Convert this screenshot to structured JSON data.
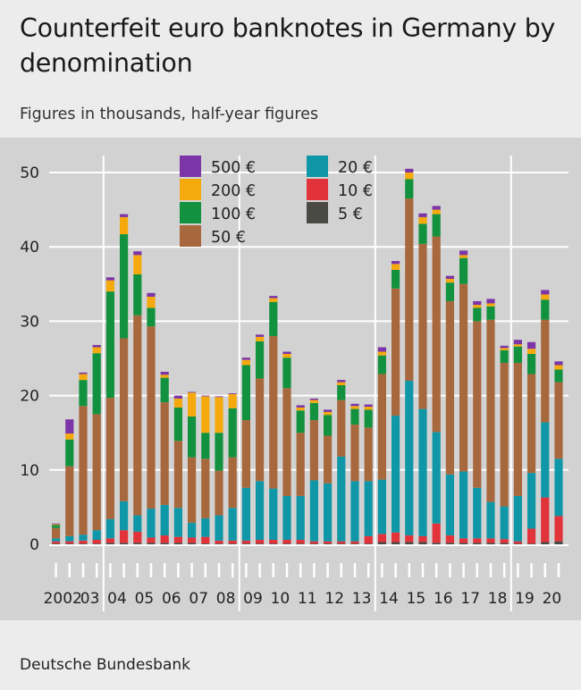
{
  "title": "Counterfeit euro banknotes in Germany by denomination",
  "subtitle": "Figures in thousands, half-year figures",
  "source": "Deutsche Bundesbank",
  "colors": {
    "5": "#4a4a45",
    "10": "#e2333a",
    "20": "#0f97a8",
    "50": "#a8683d",
    "100": "#12923f",
    "200": "#f5a90c",
    "500": "#7b35a6"
  },
  "chart_data": {
    "type": "bar",
    "stacked": true,
    "title": "Counterfeit euro banknotes in Germany by denomination",
    "subtitle": "Figures in thousands, half-year figures",
    "unit": "thousands",
    "ylim": [
      0,
      50
    ],
    "yticks": [
      0,
      10,
      20,
      30,
      40,
      50
    ],
    "grid": true,
    "legend_position": "top",
    "legend_entries": [
      "500 €",
      "200 €",
      "100 €",
      "50 €",
      "20 €",
      "10 €",
      "5 €"
    ],
    "year_labels": [
      "2002",
      "03",
      "04",
      "05",
      "06",
      "07",
      "08",
      "09",
      "10",
      "11",
      "12",
      "13",
      "14",
      "15",
      "16",
      "17",
      "18",
      "19",
      "20"
    ],
    "categories": [
      "2002 H1",
      "2002 H2",
      "2003 H1",
      "2003 H2",
      "2004 H1",
      "2004 H2",
      "2005 H1",
      "2005 H2",
      "2006 H1",
      "2006 H2",
      "2007 H1",
      "2007 H2",
      "2008 H1",
      "2008 H2",
      "2009 H1",
      "2009 H2",
      "2010 H1",
      "2010 H2",
      "2011 H1",
      "2011 H2",
      "2012 H1",
      "2012 H2",
      "2013 H1",
      "2013 H2",
      "2014 H1",
      "2014 H2",
      "2015 H1",
      "2015 H2",
      "2016 H1",
      "2016 H2",
      "2017 H1",
      "2017 H2",
      "2018 H1",
      "2018 H2",
      "2019 H1",
      "2019 H2",
      "2020 H1",
      "2020 H2"
    ],
    "series": [
      {
        "name": "5 €",
        "key": "5",
        "values": [
          0.1,
          0.1,
          0.1,
          0.1,
          0.2,
          0.2,
          0.2,
          0.2,
          0.2,
          0.2,
          0.2,
          0.1,
          0.1,
          0.1,
          0.1,
          0.1,
          0.1,
          0.1,
          0.1,
          0.1,
          0.1,
          0.1,
          0.1,
          0.1,
          0.3,
          0.3,
          0.3,
          0.3,
          0.2,
          0.2,
          0.2,
          0.2,
          0.2,
          0.2,
          0.1,
          0.1,
          0.3,
          0.4
        ]
      },
      {
        "name": "10 €",
        "key": "10",
        "values": [
          0.3,
          0.3,
          0.4,
          0.5,
          0.6,
          1.7,
          1.5,
          0.7,
          1.0,
          0.8,
          0.7,
          0.9,
          0.4,
          0.4,
          0.4,
          0.5,
          0.5,
          0.5,
          0.5,
          0.3,
          0.3,
          0.3,
          0.3,
          1.0,
          1.1,
          1.3,
          0.9,
          0.8,
          2.6,
          1.0,
          0.6,
          0.6,
          0.6,
          0.5,
          0.3,
          2.0,
          6.0,
          3.4
        ]
      },
      {
        "name": "20 €",
        "key": "20",
        "values": [
          0.4,
          0.7,
          0.8,
          1.3,
          2.6,
          3.9,
          2.2,
          3.9,
          4.1,
          3.9,
          2.0,
          2.5,
          3.4,
          4.4,
          7.1,
          7.9,
          6.9,
          5.9,
          5.9,
          8.2,
          7.8,
          11.4,
          8.1,
          7.4,
          7.3,
          15.7,
          20.8,
          17.1,
          12.3,
          8.2,
          9.0,
          6.8,
          4.9,
          4.4,
          6.1,
          7.5,
          10.1,
          7.7
        ]
      },
      {
        "name": "50 €",
        "key": "50",
        "values": [
          1.4,
          9.4,
          17.3,
          15.6,
          16.3,
          21.9,
          26.9,
          24.5,
          13.8,
          9.0,
          8.8,
          8.0,
          6.0,
          6.8,
          9.1,
          13.8,
          20.5,
          14.5,
          8.5,
          8.1,
          6.4,
          7.6,
          7.6,
          7.2,
          14.2,
          17.1,
          24.5,
          22.2,
          26.3,
          23.3,
          25.2,
          22.4,
          24.5,
          19.3,
          17.9,
          13.3,
          13.8,
          10.3
        ]
      },
      {
        "name": "100 €",
        "key": "100",
        "values": [
          0.4,
          3.6,
          3.5,
          8.2,
          14.3,
          14.0,
          5.5,
          2.5,
          3.3,
          4.5,
          5.5,
          3.5,
          5.1,
          6.6,
          7.4,
          5.0,
          4.6,
          4.1,
          3.0,
          2.3,
          2.8,
          2.0,
          2.1,
          2.4,
          2.5,
          2.5,
          2.6,
          2.7,
          3.0,
          2.5,
          3.5,
          1.8,
          1.8,
          1.7,
          2.2,
          2.7,
          2.7,
          1.7
        ]
      },
      {
        "name": "200 €",
        "key": "200",
        "values": [
          0.1,
          0.8,
          0.8,
          0.8,
          1.5,
          2.3,
          2.6,
          1.5,
          0.4,
          1.2,
          3.2,
          4.9,
          4.8,
          1.9,
          0.7,
          0.6,
          0.5,
          0.5,
          0.4,
          0.4,
          0.4,
          0.4,
          0.4,
          0.4,
          0.5,
          0.8,
          0.9,
          0.9,
          0.6,
          0.5,
          0.4,
          0.4,
          0.4,
          0.3,
          0.3,
          0.7,
          0.7,
          0.6
        ]
      },
      {
        "name": "500 €",
        "key": "500",
        "values": [
          0.1,
          1.9,
          0.2,
          0.3,
          0.4,
          0.4,
          0.5,
          0.5,
          0.4,
          0.4,
          0.1,
          0.1,
          0.1,
          0.1,
          0.3,
          0.3,
          0.3,
          0.3,
          0.3,
          0.2,
          0.3,
          0.3,
          0.3,
          0.3,
          0.6,
          0.4,
          0.5,
          0.5,
          0.5,
          0.4,
          0.6,
          0.5,
          0.6,
          0.3,
          0.6,
          0.9,
          0.6,
          0.5
        ]
      }
    ]
  }
}
